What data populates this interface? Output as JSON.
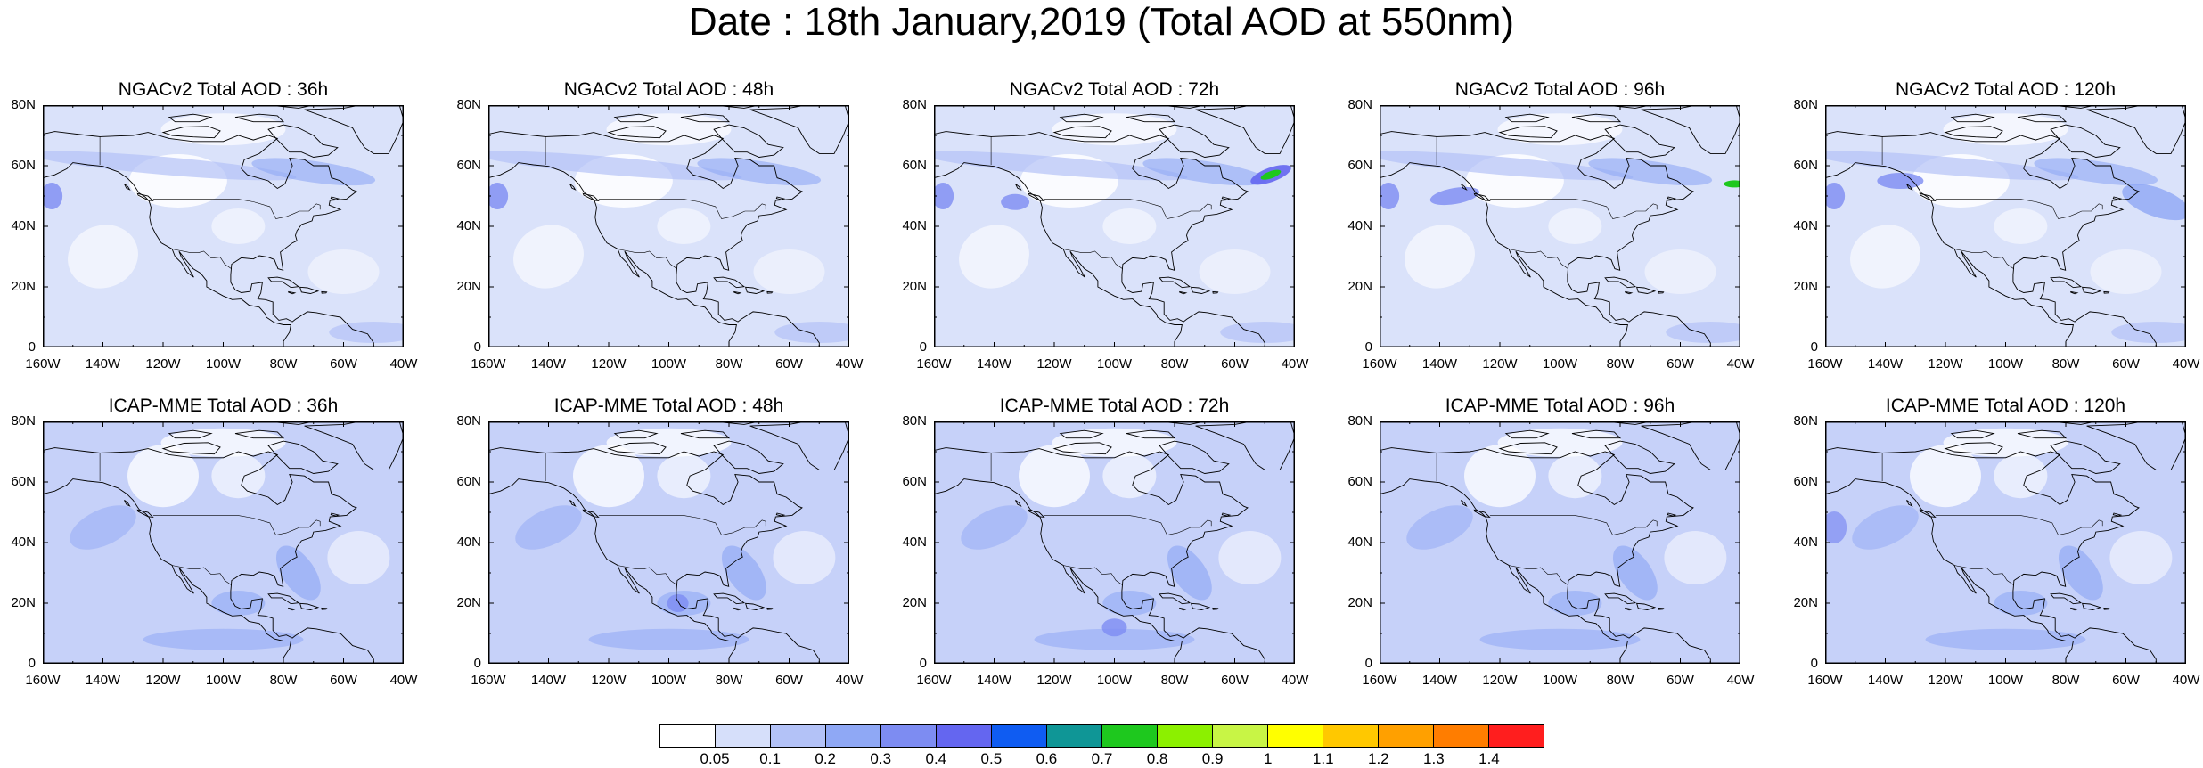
{
  "title": "Date : 18th January,2019 (Total AOD at 550nm)",
  "lat_ticks": [
    "80N",
    "60N",
    "40N",
    "20N",
    "0"
  ],
  "lon_ticks": [
    "160W",
    "140W",
    "120W",
    "100W",
    "80W",
    "60W",
    "40W"
  ],
  "panels": [
    {
      "title": "NGACv2 Total AOD : 36h",
      "model": "NGACv2",
      "lead": "36h"
    },
    {
      "title": "NGACv2 Total AOD : 48h",
      "model": "NGACv2",
      "lead": "48h"
    },
    {
      "title": "NGACv2 Total AOD : 72h",
      "model": "NGACv2",
      "lead": "72h"
    },
    {
      "title": "NGACv2 Total AOD : 96h",
      "model": "NGACv2",
      "lead": "96h"
    },
    {
      "title": "NGACv2 Total AOD : 120h",
      "model": "NGACv2",
      "lead": "120h"
    },
    {
      "title": "ICAP-MME Total AOD : 36h",
      "model": "ICAP-MME",
      "lead": "36h"
    },
    {
      "title": "ICAP-MME Total AOD : 48h",
      "model": "ICAP-MME",
      "lead": "48h"
    },
    {
      "title": "ICAP-MME Total AOD : 72h",
      "model": "ICAP-MME",
      "lead": "72h"
    },
    {
      "title": "ICAP-MME Total AOD : 96h",
      "model": "ICAP-MME",
      "lead": "96h"
    },
    {
      "title": "ICAP-MME Total AOD : 120h",
      "model": "ICAP-MME",
      "lead": "120h"
    }
  ],
  "colorbar": {
    "labels": [
      "0.05",
      "0.1",
      "0.2",
      "0.3",
      "0.4",
      "0.5",
      "0.6",
      "0.7",
      "0.8",
      "0.9",
      "1",
      "1.1",
      "1.2",
      "1.3",
      "1.4"
    ],
    "colors": [
      "#ffffff",
      "#d6dffa",
      "#b3c2f7",
      "#8fa8f5",
      "#7d8cf2",
      "#6466f0",
      "#0f5cf2",
      "#0f9696",
      "#1ec81e",
      "#8cf000",
      "#c8f545",
      "#ffff00",
      "#ffc800",
      "#ffa000",
      "#ff7d00",
      "#ff1e1e"
    ]
  }
}
